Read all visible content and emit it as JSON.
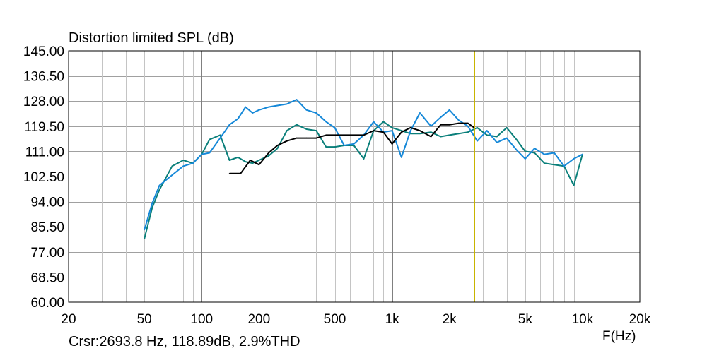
{
  "chart_data": {
    "type": "line",
    "title": "Distortion limited SPL (dB)",
    "xlabel": "F(Hz)",
    "ylabel": "Distortion limited SPL (dB)",
    "x_scale": "log",
    "xlim": [
      20,
      20000
    ],
    "ylim": [
      60,
      145
    ],
    "grid": true,
    "x_tick_labels": [
      {
        "value": 20,
        "label": "20"
      },
      {
        "value": 50,
        "label": "50"
      },
      {
        "value": 100,
        "label": "100"
      },
      {
        "value": 200,
        "label": "200"
      },
      {
        "value": 500,
        "label": "500"
      },
      {
        "value": 1000,
        "label": "1k"
      },
      {
        "value": 2000,
        "label": "2k"
      },
      {
        "value": 5000,
        "label": "5k"
      },
      {
        "value": 10000,
        "label": "10k"
      },
      {
        "value": 20000,
        "label": "20k"
      }
    ],
    "y_tick_labels": [
      "145.00",
      "136.50",
      "128.00",
      "119.50",
      "111.00",
      "102.50",
      "94.00",
      "85.50",
      "77.00",
      "68.50",
      "60.00"
    ],
    "cursor": {
      "frequency": 2693.8,
      "readout": "Crsr:2693.8 Hz, 118.89dB, 2.9%THD"
    },
    "series": [
      {
        "color": "#0A7F7A",
        "x": [
          50,
          55,
          60,
          70,
          80,
          90,
          100,
          110,
          125,
          140,
          155,
          170,
          185,
          200,
          225,
          250,
          280,
          315,
          355,
          400,
          450,
          500,
          560,
          630,
          710,
          800,
          900,
          1000,
          1120,
          1250,
          1400,
          1600,
          1800,
          2000,
          2240,
          2500,
          2800,
          3150,
          3550,
          4000,
          4500,
          5000,
          5600,
          6300,
          7100,
          8000,
          9000,
          10000
        ],
        "y": [
          81.5,
          92,
          98,
          106,
          108,
          107,
          110,
          115,
          116.5,
          108,
          109,
          107.5,
          107,
          108,
          109.5,
          112,
          118,
          120,
          118.5,
          118,
          112.5,
          112.5,
          113,
          113,
          108.5,
          118,
          121,
          119,
          118,
          117,
          117,
          117.5,
          116,
          116.5,
          117,
          117.5,
          119,
          116.5,
          116,
          119,
          115,
          111,
          110.5,
          107,
          106.5,
          106,
          99.5,
          110
        ]
      },
      {
        "color": "#1588D8",
        "x": [
          50,
          55,
          60,
          70,
          80,
          90,
          100,
          110,
          125,
          140,
          155,
          170,
          185,
          200,
          225,
          250,
          280,
          315,
          355,
          400,
          450,
          500,
          560,
          630,
          710,
          800,
          900,
          1000,
          1120,
          1250,
          1400,
          1600,
          1800,
          2000,
          2240,
          2500,
          2800,
          3150,
          3550,
          4000,
          4500,
          5000,
          5600,
          6300,
          7100,
          8000,
          9000,
          10000
        ],
        "y": [
          84.5,
          93.5,
          99.5,
          103,
          106,
          107,
          110,
          110.5,
          115.5,
          120,
          122,
          126,
          124,
          125,
          126,
          126.5,
          127,
          128.5,
          125,
          124,
          121,
          119,
          113,
          113.5,
          116.5,
          121,
          117.5,
          118,
          109,
          118,
          124,
          119.5,
          122.5,
          125,
          121.5,
          119.5,
          114.5,
          118,
          114,
          115.5,
          111.5,
          108.5,
          112,
          110,
          110.5,
          106,
          108.5,
          110
        ]
      },
      {
        "color": "#000000",
        "x": [
          140,
          160,
          180,
          200,
          225,
          250,
          280,
          315,
          355,
          400,
          450,
          500,
          560,
          630,
          710,
          800,
          900,
          1000,
          1120,
          1250,
          1400,
          1600,
          1800,
          2000,
          2240,
          2500,
          2700
        ],
        "y": [
          103.5,
          103.5,
          108,
          106.5,
          110.5,
          113,
          114.5,
          115.5,
          115.5,
          115.5,
          116.5,
          116.5,
          116.5,
          116.5,
          116.5,
          118,
          117.5,
          113.5,
          117.5,
          119,
          118,
          116,
          120,
          120,
          120.5,
          120.5,
          119
        ]
      }
    ]
  }
}
